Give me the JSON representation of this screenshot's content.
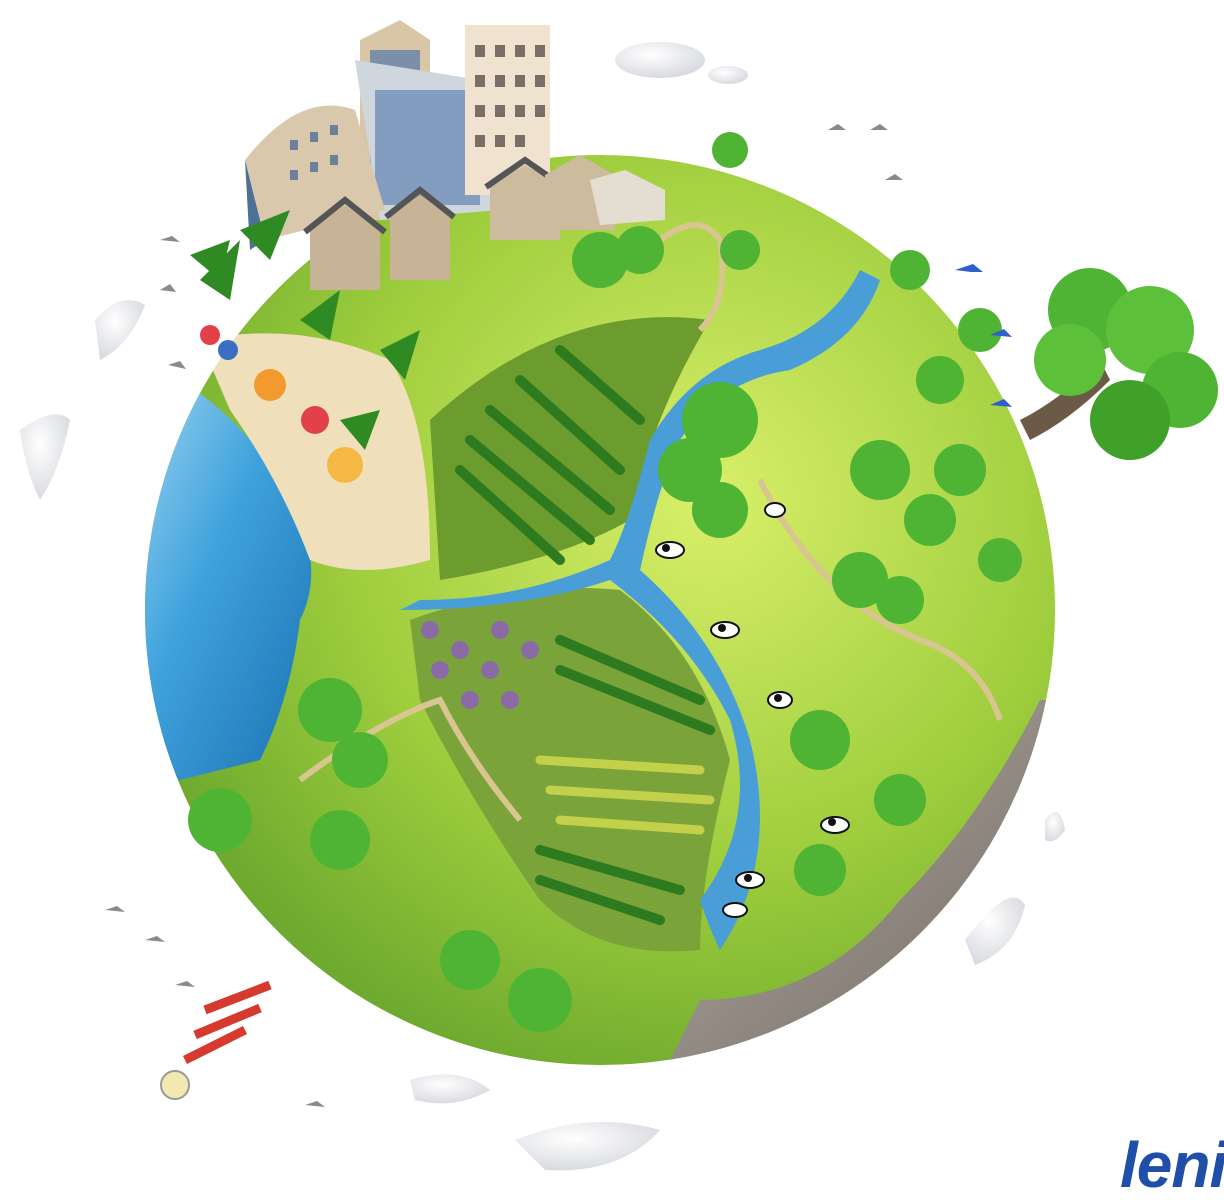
{
  "watermark": {
    "text": "leni"
  },
  "colors": {
    "background": "#ffffff",
    "ocean": "#3fa2dc",
    "sand": "#efe0bb",
    "grass": "#8cc83a",
    "grass_light": "#bfe25a",
    "tree": "#4fb334",
    "tree_dark": "#2f8a24",
    "river": "#4a9ed8",
    "rock": "#8b8580",
    "building": "#d8c6a6",
    "glass": "#5c7ea8",
    "cloud": "#f4f4f6",
    "brand": "#1f4fa8"
  },
  "icons": [
    "globe-icon",
    "building-icon",
    "tree-icon",
    "cow-icon",
    "umbrella-icon",
    "lighthouse-icon",
    "cloud-icon",
    "bird-icon"
  ]
}
